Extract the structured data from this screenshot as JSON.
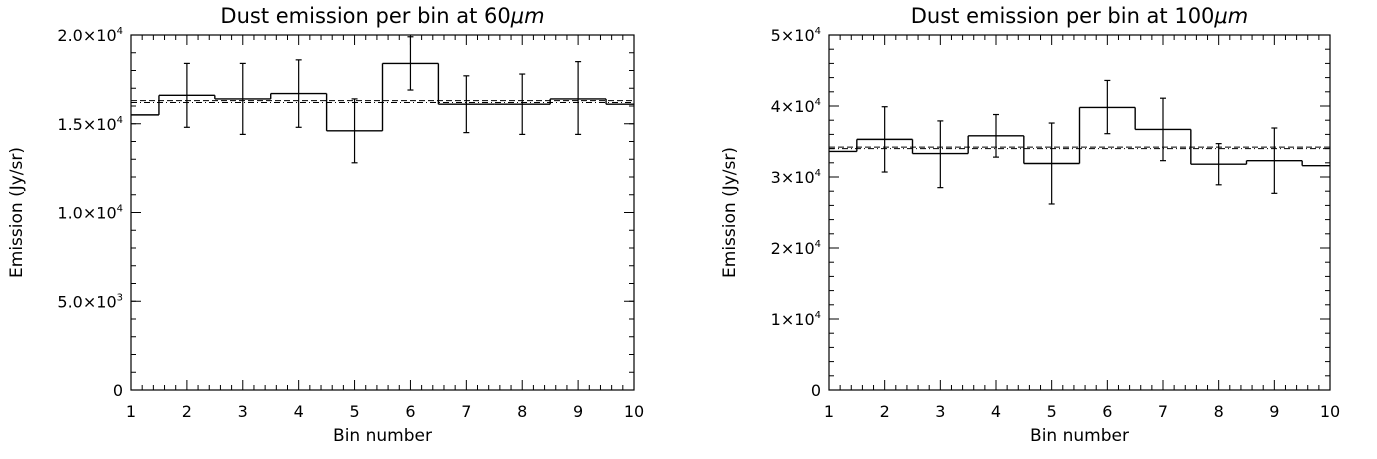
{
  "chart_data": [
    {
      "type": "histogram",
      "title": "Dust emission per bin at 60",
      "title_unit": "μm",
      "xlabel": "Bin number",
      "ylabel": "Emission (Jy/sr)",
      "xlim": [
        1,
        10
      ],
      "ylim": [
        0,
        20000
      ],
      "x_ticks": [
        1,
        2,
        3,
        4,
        5,
        6,
        7,
        8,
        9,
        10
      ],
      "x_tick_labels": [
        "1",
        "2",
        "3",
        "4",
        "5",
        "6",
        "7",
        "8",
        "9",
        "10"
      ],
      "y_ticks": [
        0,
        5000,
        10000,
        15000,
        20000
      ],
      "y_tick_labels": [
        {
          "mantissa": "0",
          "exponent": ""
        },
        {
          "mantissa": "5.0×10",
          "exponent": "3"
        },
        {
          "mantissa": "1.0×10",
          "exponent": "4"
        },
        {
          "mantissa": "1.5×10",
          "exponent": "4"
        },
        {
          "mantissa": "2.0×10",
          "exponent": "4"
        }
      ],
      "y_minor_step": 1000,
      "bins": [
        1,
        2,
        3,
        4,
        5,
        6,
        7,
        8,
        9,
        10
      ],
      "values": [
        15500,
        16600,
        16400,
        16700,
        14600,
        18400,
        16100,
        16100,
        16400,
        16100
      ],
      "error_low": [
        null,
        14800,
        14400,
        14800,
        12800,
        16900,
        14500,
        14400,
        14400,
        null
      ],
      "error_high": [
        null,
        18400,
        18400,
        18600,
        16400,
        19900,
        17700,
        17800,
        18500,
        null
      ],
      "reference_lines": [
        {
          "style": "dashed",
          "value": 16300
        },
        {
          "style": "dash-dot",
          "value": 16200
        }
      ]
    },
    {
      "type": "histogram",
      "title": "Dust emission per bin at 100",
      "title_unit": "μm",
      "xlabel": "Bin number",
      "ylabel": "Emission (Jy/sr)",
      "xlim": [
        1,
        10
      ],
      "ylim": [
        0,
        50000
      ],
      "x_ticks": [
        1,
        2,
        3,
        4,
        5,
        6,
        7,
        8,
        9,
        10
      ],
      "x_tick_labels": [
        "1",
        "2",
        "3",
        "4",
        "5",
        "6",
        "7",
        "8",
        "9",
        "10"
      ],
      "y_ticks": [
        0,
        10000,
        20000,
        30000,
        40000,
        50000
      ],
      "y_tick_labels": [
        {
          "mantissa": "0",
          "exponent": ""
        },
        {
          "mantissa": "1×10",
          "exponent": "4"
        },
        {
          "mantissa": "2×10",
          "exponent": "4"
        },
        {
          "mantissa": "3×10",
          "exponent": "4"
        },
        {
          "mantissa": "4×10",
          "exponent": "4"
        },
        {
          "mantissa": "5×10",
          "exponent": "4"
        }
      ],
      "y_minor_step": 2000,
      "bins": [
        1,
        2,
        3,
        4,
        5,
        6,
        7,
        8,
        9,
        10
      ],
      "values": [
        33600,
        35300,
        33300,
        35800,
        31900,
        39800,
        36700,
        31800,
        32300,
        31600
      ],
      "error_low": [
        null,
        30700,
        28500,
        32800,
        26200,
        36100,
        32300,
        28900,
        27700,
        null
      ],
      "error_high": [
        null,
        39900,
        37900,
        38800,
        37600,
        43600,
        41100,
        34700,
        36900,
        null
      ],
      "reference_lines": [
        {
          "style": "dashed",
          "value": 34200
        },
        {
          "style": "dash-dot",
          "value": 34000
        }
      ]
    }
  ]
}
